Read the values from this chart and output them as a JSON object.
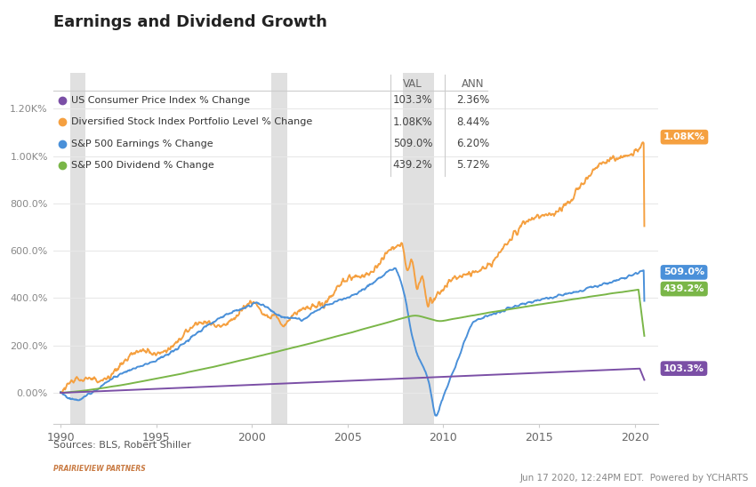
{
  "title": "Earnings and Dividend Growth",
  "title_fontsize": 13,
  "background_color": "#ffffff",
  "plot_bg_color": "#ffffff",
  "grid_color": "#e8e8e8",
  "source_text": "Sources: BLS, Robert Shiller",
  "footer_text": "Jun 17 2020, 12:24PM EDT.  Powered by YCHARTS",
  "legend_entries": [
    {
      "label": "US Consumer Price Index % Change",
      "val": "103.3%",
      "ann": "2.36%",
      "color": "#7b4fa6"
    },
    {
      "label": "Diversified Stock Index Portfolio Level % Change",
      "val": "1.08K%",
      "ann": "8.44%",
      "color": "#f5a040"
    },
    {
      "label": "S&P 500 Earnings % Change",
      "val": "509.0%",
      "ann": "6.20%",
      "color": "#4a90d9"
    },
    {
      "label": "S&P 500 Dividend % Change",
      "val": "439.2%",
      "ann": "5.72%",
      "color": "#7ab648"
    }
  ],
  "recession_bands": [
    {
      "start": 1990.5,
      "end": 1991.3
    },
    {
      "start": 2001.0,
      "end": 2001.85
    },
    {
      "start": 2007.9,
      "end": 2009.5
    }
  ],
  "xmin": 1989.6,
  "xmax": 2021.2,
  "ymin": -130,
  "ymax": 1350,
  "yticks": [
    0,
    200,
    400,
    600,
    800,
    1000,
    1200
  ],
  "ytick_labels": [
    "0.00%",
    "200.0%",
    "400.0%",
    "600.0%",
    "800.0%",
    "1.00K%",
    "1.20K%"
  ],
  "xticks": [
    1990,
    1995,
    2000,
    2005,
    2010,
    2015,
    2020
  ],
  "end_labels": [
    {
      "text": "1.08K%",
      "color": "#f5a040",
      "y": 1080
    },
    {
      "text": "509.0%",
      "color": "#4a90d9",
      "y": 509
    },
    {
      "text": "439.2%",
      "color": "#7ab648",
      "y": 439
    },
    {
      "text": "103.3%",
      "color": "#7b4fa6",
      "y": 103
    }
  ]
}
